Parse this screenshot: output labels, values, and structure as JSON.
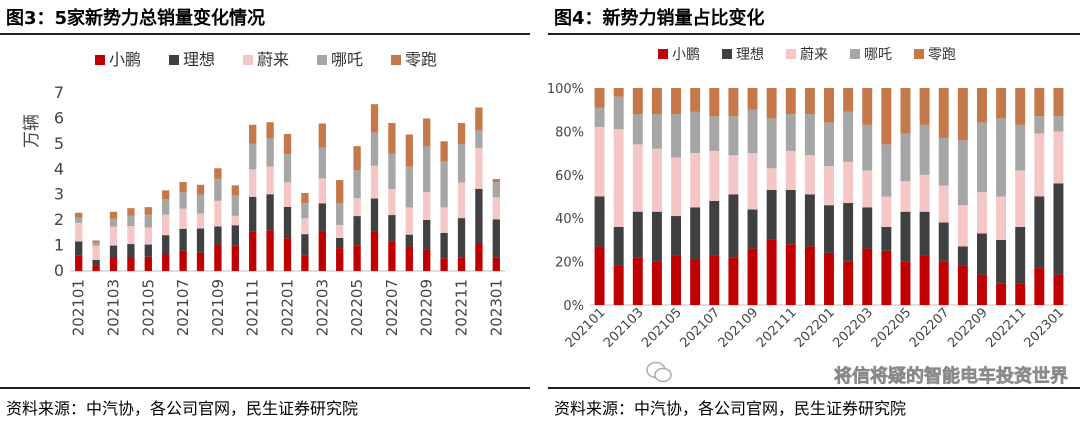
{
  "colors": {
    "小鹏": "#c00000",
    "理想": "#404040",
    "蔚来": "#f4c7c6",
    "哪吒": "#a6a6a6",
    "零跑": "#c5784a"
  },
  "left": {
    "title": "图3：5家新势力总销量变化情况",
    "source": "资料来源：中汽协，各公司官网，民生证券研究院"
  },
  "right": {
    "title": "图4：新势力销量占比变化",
    "source": "资料来源：中汽协，各公司官网，民生证券研究院",
    "watermark": "将信将疑的智能电车投资世界"
  },
  "chart_data": [
    {
      "type": "bar",
      "stacked": true,
      "title": "图3：5家新势力总销量变化情况",
      "ylabel": "万辆",
      "ylim": [
        0,
        7
      ],
      "yticks": [
        0,
        1,
        2,
        3,
        4,
        5,
        6,
        7
      ],
      "categories": [
        "202101",
        "202102",
        "202103",
        "202104",
        "202105",
        "202106",
        "202107",
        "202108",
        "202109",
        "202110",
        "202111",
        "202112",
        "202201",
        "202202",
        "202203",
        "202204",
        "202205",
        "202206",
        "202207",
        "202208",
        "202209",
        "202210",
        "202211",
        "202212",
        "202301"
      ],
      "xticklabels": [
        "202101",
        "202103",
        "202105",
        "202107",
        "202109",
        "202111",
        "202201",
        "202203",
        "202205",
        "202207",
        "202209",
        "202211",
        "202301"
      ],
      "series": [
        {
          "name": "小鹏",
          "values": [
            0.62,
            0.22,
            0.51,
            0.51,
            0.56,
            0.65,
            0.8,
            0.72,
            1.04,
            1.01,
            1.56,
            1.6,
            1.29,
            0.62,
            1.57,
            0.9,
            1.01,
            1.55,
            1.15,
            0.96,
            0.86,
            0.5,
            0.54,
            1.1,
            0.52
          ]
        },
        {
          "name": "理想",
          "values": [
            0.54,
            0.22,
            0.49,
            0.55,
            0.48,
            0.76,
            0.86,
            0.95,
            0.71,
            0.79,
            1.36,
            1.42,
            1.23,
            0.83,
            1.09,
            0.4,
            1.15,
            1.3,
            1.05,
            0.47,
            1.15,
            1.0,
            1.54,
            2.13,
            1.51
          ]
        },
        {
          "name": "蔚来",
          "values": [
            0.73,
            0.55,
            0.75,
            0.71,
            0.67,
            0.81,
            0.79,
            0.59,
            1.01,
            0.37,
            1.08,
            1.09,
            0.97,
            0.62,
            0.98,
            0.51,
            0.7,
            1.29,
            1.02,
            1.07,
            1.09,
            1.0,
            1.4,
            1.6,
            0.87
          ]
        },
        {
          "name": "哪吒",
          "values": [
            0.2,
            0.13,
            0.3,
            0.4,
            0.5,
            0.6,
            0.65,
            0.75,
            0.86,
            0.82,
            1.0,
            1.12,
            1.1,
            0.6,
            1.21,
            0.86,
            1.1,
            1.3,
            1.4,
            1.6,
            1.8,
            1.8,
            1.5,
            0.7,
            0.6
          ]
        },
        {
          "name": "零跑",
          "values": [
            0.2,
            0.08,
            0.28,
            0.3,
            0.3,
            0.35,
            0.4,
            0.38,
            0.42,
            0.38,
            0.75,
            0.62,
            0.8,
            0.4,
            0.95,
            0.91,
            0.95,
            1.12,
            1.2,
            1.27,
            1.1,
            0.8,
            0.84,
            0.9,
            0.12
          ]
        }
      ]
    },
    {
      "type": "bar",
      "stacked": true,
      "percent": true,
      "title": "图4：新势力销量占比变化",
      "ylim": [
        0,
        100
      ],
      "yticks": [
        0,
        20,
        40,
        60,
        80,
        100
      ],
      "yticklabels": [
        "0%",
        "20%",
        "40%",
        "60%",
        "80%",
        "100%"
      ],
      "categories": [
        "202101",
        "202102",
        "202103",
        "202104",
        "202105",
        "202106",
        "202107",
        "202108",
        "202109",
        "202110",
        "202111",
        "202112",
        "202201",
        "202202",
        "202203",
        "202204",
        "202205",
        "202206",
        "202207",
        "202208",
        "202209",
        "202210",
        "202211",
        "202212",
        "202301"
      ],
      "xticklabels": [
        "202101",
        "202103",
        "202105",
        "202107",
        "202109",
        "202111",
        "202201",
        "202203",
        "202205",
        "202207",
        "202209",
        "202211",
        "202301"
      ],
      "series": [
        {
          "name": "小鹏",
          "values": [
            27,
            18,
            22,
            20,
            23,
            21,
            23,
            22,
            26,
            30,
            28,
            27,
            24,
            20,
            26,
            25,
            20,
            23,
            20,
            18,
            14,
            10,
            10,
            17,
            14
          ]
        },
        {
          "name": "理想",
          "values": [
            23,
            18,
            21,
            23,
            18,
            24,
            25,
            29,
            18,
            23,
            25,
            24,
            22,
            27,
            19,
            11,
            23,
            20,
            18,
            9,
            19,
            20,
            26,
            33,
            42
          ]
        },
        {
          "name": "蔚来",
          "values": [
            32,
            45,
            31,
            29,
            27,
            25,
            23,
            18,
            26,
            10,
            18,
            18,
            18,
            19,
            17,
            14,
            14,
            17,
            17,
            19,
            19,
            20,
            26,
            29,
            24
          ]
        },
        {
          "name": "哪吒",
          "values": [
            9,
            15,
            14,
            16,
            20,
            19,
            16,
            18,
            20,
            23,
            17,
            19,
            20,
            23,
            21,
            24,
            22,
            23,
            22,
            30,
            32,
            36,
            21,
            8,
            7
          ]
        },
        {
          "name": "零跑",
          "values": [
            9,
            4,
            12,
            12,
            12,
            11,
            13,
            13,
            10,
            14,
            12,
            12,
            16,
            11,
            17,
            26,
            21,
            17,
            23,
            24,
            16,
            14,
            17,
            13,
            13
          ]
        }
      ]
    }
  ]
}
